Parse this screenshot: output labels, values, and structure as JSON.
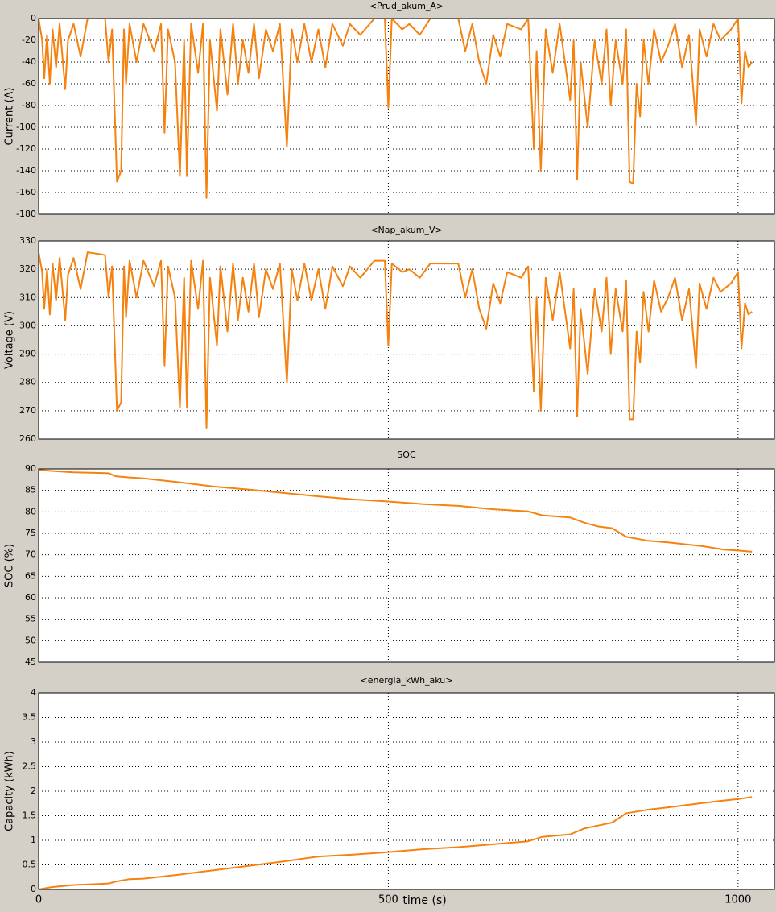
{
  "chart_data": [
    {
      "type": "line",
      "title": "<Prud_akum_A>",
      "ylabel": "Current (A)",
      "color": "#f5820f",
      "grid": true,
      "xlim": [
        0,
        1052
      ],
      "xticks": [
        0,
        500,
        1000
      ],
      "ylim": [
        -180,
        0
      ],
      "yticks": [
        -180,
        -160,
        -140,
        -120,
        -100,
        -80,
        -60,
        -40,
        -20,
        0
      ],
      "x": [
        0,
        5,
        8,
        12,
        16,
        20,
        25,
        30,
        38,
        42,
        50,
        60,
        70,
        95,
        100,
        105,
        112,
        118,
        122,
        125,
        130,
        140,
        150,
        165,
        175,
        180,
        185,
        195,
        202,
        208,
        212,
        218,
        228,
        235,
        240,
        245,
        255,
        260,
        270,
        278,
        285,
        292,
        300,
        308,
        315,
        325,
        335,
        345,
        355,
        362,
        370,
        380,
        390,
        400,
        410,
        420,
        435,
        445,
        460,
        480,
        495,
        500,
        505,
        520,
        530,
        545,
        560,
        600,
        610,
        620,
        630,
        640,
        650,
        660,
        670,
        690,
        700,
        708,
        712,
        718,
        725,
        735,
        745,
        760,
        765,
        770,
        775,
        785,
        795,
        805,
        812,
        818,
        825,
        835,
        840,
        845,
        850,
        855,
        860,
        865,
        872,
        880,
        890,
        900,
        910,
        920,
        930,
        940,
        945,
        955,
        965,
        975,
        990,
        1000,
        1005,
        1010,
        1015,
        1020
      ],
      "values": [
        0,
        -20,
        -55,
        -15,
        -60,
        -10,
        -45,
        -5,
        -65,
        -20,
        -5,
        -35,
        0,
        0,
        -40,
        -10,
        -150,
        -140,
        -10,
        -60,
        -5,
        -40,
        -5,
        -30,
        -5,
        -105,
        -10,
        -40,
        -145,
        -20,
        -145,
        -5,
        -50,
        -5,
        -165,
        -20,
        -85,
        -10,
        -70,
        -5,
        -60,
        -20,
        -50,
        -5,
        -55,
        -10,
        -30,
        -5,
        -118,
        -10,
        -40,
        -5,
        -40,
        -10,
        -45,
        -5,
        -25,
        -5,
        -15,
        0,
        0,
        -82,
        0,
        -10,
        -5,
        -15,
        0,
        0,
        -30,
        -5,
        -40,
        -60,
        -15,
        -35,
        -5,
        -10,
        0,
        -120,
        -30,
        -140,
        -10,
        -50,
        -5,
        -75,
        -20,
        -148,
        -40,
        -100,
        -20,
        -60,
        -10,
        -80,
        -20,
        -60,
        -10,
        -150,
        -152,
        -60,
        -90,
        -20,
        -60,
        -10,
        -40,
        -25,
        -5,
        -45,
        -15,
        -98,
        -10,
        -35,
        -5,
        -20,
        -10,
        0,
        -78,
        -30,
        -45,
        -40
      ]
    },
    {
      "type": "line",
      "title": "<Nap_akum_V>",
      "ylabel": "Voltage (V)",
      "color": "#f5820f",
      "grid": true,
      "xlim": [
        0,
        1052
      ],
      "xticks": [
        0,
        500,
        1000
      ],
      "ylim": [
        260,
        330
      ],
      "yticks": [
        260,
        270,
        280,
        290,
        300,
        310,
        320,
        330
      ],
      "x": [
        0,
        5,
        8,
        12,
        16,
        20,
        25,
        30,
        38,
        42,
        50,
        60,
        70,
        95,
        100,
        105,
        112,
        118,
        122,
        125,
        130,
        140,
        150,
        165,
        175,
        180,
        185,
        195,
        202,
        208,
        212,
        218,
        228,
        235,
        240,
        245,
        255,
        260,
        270,
        278,
        285,
        292,
        300,
        308,
        315,
        325,
        335,
        345,
        355,
        362,
        370,
        380,
        390,
        400,
        410,
        420,
        435,
        445,
        460,
        480,
        495,
        500,
        505,
        520,
        530,
        545,
        560,
        600,
        610,
        620,
        630,
        640,
        650,
        660,
        670,
        690,
        700,
        708,
        712,
        718,
        725,
        735,
        745,
        760,
        765,
        770,
        775,
        785,
        795,
        805,
        812,
        818,
        825,
        835,
        840,
        845,
        850,
        855,
        860,
        865,
        872,
        880,
        890,
        900,
        910,
        920,
        930,
        940,
        945,
        955,
        965,
        975,
        990,
        1000,
        1005,
        1010,
        1015,
        1020
      ],
      "values": [
        326,
        319,
        306,
        320,
        304,
        322,
        309,
        324,
        302,
        318,
        324,
        313,
        326,
        325,
        310,
        321,
        270,
        273,
        321,
        303,
        323,
        310,
        323,
        314,
        323,
        286,
        321,
        310,
        271,
        317,
        271,
        323,
        306,
        323,
        264,
        317,
        293,
        321,
        298,
        322,
        302,
        317,
        305,
        322,
        303,
        320,
        313,
        322,
        280,
        320,
        309,
        322,
        309,
        320,
        306,
        321,
        314,
        321,
        317,
        323,
        323,
        293,
        322,
        319,
        320,
        317,
        322,
        322,
        310,
        320,
        306,
        299,
        315,
        308,
        319,
        317,
        321,
        277,
        310,
        270,
        317,
        302,
        319,
        292,
        313,
        268,
        306,
        283,
        313,
        298,
        317,
        290,
        313,
        298,
        316,
        267,
        267,
        298,
        287,
        312,
        298,
        316,
        305,
        310,
        317,
        302,
        313,
        285,
        315,
        306,
        317,
        312,
        315,
        319,
        292,
        308,
        304,
        305
      ]
    },
    {
      "type": "line",
      "title": "SOC",
      "ylabel": "SOC (%)",
      "color": "#f5820f",
      "grid": true,
      "xlim": [
        0,
        1052
      ],
      "xticks": [
        0,
        500,
        1000
      ],
      "ylim": [
        45,
        90
      ],
      "yticks": [
        45,
        50,
        55,
        60,
        65,
        70,
        75,
        80,
        85,
        90
      ],
      "x": [
        0,
        20,
        50,
        100,
        110,
        130,
        150,
        200,
        250,
        300,
        350,
        400,
        450,
        500,
        550,
        600,
        650,
        700,
        720,
        760,
        780,
        800,
        820,
        840,
        870,
        900,
        950,
        980,
        1000,
        1020
      ],
      "values": [
        89.8,
        89.5,
        89.2,
        89.0,
        88.3,
        88.0,
        87.8,
        86.9,
        85.9,
        85.2,
        84.4,
        83.6,
        82.9,
        82.4,
        81.8,
        81.4,
        80.6,
        80.1,
        79.2,
        78.7,
        77.5,
        76.6,
        76.2,
        74.2,
        73.3,
        72.9,
        72.0,
        71.2,
        71.0,
        70.7
      ]
    },
    {
      "type": "line",
      "title": "<energia_kWh_aku>",
      "ylabel": "Capacity (kWh)",
      "xlabel": "time (s)",
      "color": "#f5820f",
      "grid": true,
      "xlim": [
        0,
        1052
      ],
      "xticks": [
        0,
        500,
        1000
      ],
      "ylim": [
        0,
        4
      ],
      "yticks": [
        0,
        0.5,
        1,
        1.5,
        2,
        2.5,
        3,
        3.5,
        4
      ],
      "x": [
        0,
        20,
        50,
        100,
        110,
        130,
        150,
        200,
        250,
        300,
        350,
        400,
        450,
        500,
        550,
        600,
        650,
        700,
        720,
        760,
        780,
        800,
        820,
        840,
        870,
        900,
        950,
        980,
        1000,
        1020
      ],
      "values": [
        0,
        0.05,
        0.09,
        0.12,
        0.16,
        0.21,
        0.22,
        0.3,
        0.39,
        0.48,
        0.57,
        0.67,
        0.71,
        0.76,
        0.82,
        0.86,
        0.92,
        0.98,
        1.07,
        1.12,
        1.24,
        1.3,
        1.36,
        1.55,
        1.62,
        1.67,
        1.76,
        1.81,
        1.84,
        1.88
      ]
    }
  ]
}
